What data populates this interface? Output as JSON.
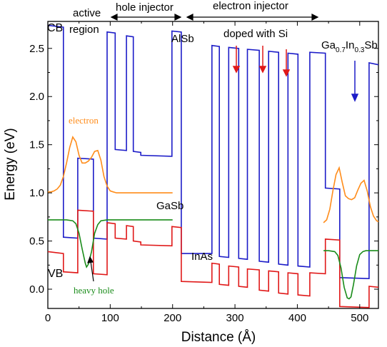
{
  "chart_data": {
    "type": "line",
    "title": "",
    "xlabel": "Distance (Å)",
    "ylabel": "Energy (eV)",
    "xlim": [
      0,
      530
    ],
    "ylim": [
      -0.2,
      2.78
    ],
    "grid": false,
    "colors": {
      "cb": "#1c1cc8",
      "vb": "#e01818",
      "electron": "#ff8c1a",
      "hole": "#1a8c1a",
      "arrow_red": "#e01818",
      "arrow_blue": "#1c1cc8"
    },
    "x_ticks": [
      0,
      100,
      200,
      300,
      400,
      500
    ],
    "y_ticks": [
      0.0,
      0.5,
      1.0,
      1.5,
      2.0,
      2.5
    ],
    "x_tick_labels": [
      "0",
      "100",
      "200",
      "300",
      "400",
      "500"
    ],
    "y_tick_labels": [
      "0.0",
      "0.5",
      "1.0",
      "1.5",
      "2.0",
      "2.5"
    ],
    "series": [
      {
        "name": "CB",
        "color": "#1c1cc8",
        "x": [
          0,
          25,
          25,
          48,
          48,
          73,
          73,
          95,
          95,
          108,
          108,
          126,
          126,
          137,
          137,
          149,
          149,
          199,
          199,
          214,
          214,
          263,
          263,
          275,
          275,
          290,
          290,
          306,
          306,
          320,
          320,
          339,
          339,
          354,
          354,
          370,
          370,
          385,
          385,
          401,
          401,
          420,
          420,
          445,
          445,
          468,
          468,
          515,
          515,
          530
        ],
        "y": [
          2.74,
          2.72,
          0.54,
          0.53,
          1.36,
          1.35,
          0.53,
          0.52,
          2.67,
          2.66,
          1.45,
          1.44,
          2.63,
          2.62,
          1.43,
          1.42,
          1.39,
          1.38,
          2.68,
          2.67,
          0.37,
          0.37,
          2.53,
          2.52,
          0.34,
          0.33,
          2.51,
          2.5,
          0.32,
          0.31,
          2.49,
          2.48,
          0.29,
          0.28,
          2.47,
          2.46,
          0.26,
          0.25,
          2.45,
          2.44,
          0.24,
          0.23,
          2.46,
          2.45,
          1.05,
          1.04,
          0.12,
          0.11,
          2.35,
          2.33
        ]
      },
      {
        "name": "VB",
        "color": "#e01818",
        "x": [
          0,
          25,
          25,
          48,
          48,
          73,
          73,
          95,
          95,
          108,
          108,
          126,
          126,
          137,
          137,
          149,
          149,
          199,
          199,
          214,
          214,
          263,
          263,
          275,
          275,
          290,
          290,
          306,
          306,
          320,
          320,
          339,
          339,
          354,
          354,
          370,
          370,
          385,
          385,
          401,
          401,
          420,
          420,
          445,
          445,
          468,
          468,
          515,
          515,
          530
        ],
        "y": [
          0.39,
          0.37,
          0.18,
          0.17,
          0.82,
          0.81,
          0.16,
          0.15,
          0.69,
          0.68,
          0.53,
          0.52,
          0.66,
          0.65,
          0.5,
          0.49,
          0.46,
          0.45,
          0.65,
          0.64,
          0.08,
          0.07,
          0.27,
          0.26,
          0.05,
          0.04,
          0.24,
          0.23,
          0.03,
          0.02,
          0.21,
          0.2,
          -0.01,
          -0.02,
          0.19,
          0.18,
          -0.04,
          -0.05,
          0.17,
          0.16,
          -0.06,
          -0.07,
          0.17,
          0.16,
          0.52,
          0.51,
          -0.18,
          -0.19,
          0.03,
          0.02
        ]
      },
      {
        "name": "electron",
        "color": "#ff8c1a",
        "x": [
          0,
          5,
          10,
          15,
          20,
          25,
          30,
          35,
          40,
          45,
          50,
          55,
          60,
          65,
          70,
          75,
          80,
          85,
          90,
          95,
          100,
          105,
          110,
          115,
          120,
          125,
          130,
          135,
          140,
          145,
          150,
          155,
          160,
          165,
          170,
          175,
          180,
          185,
          190,
          195,
          200
        ],
        "y": [
          1.01,
          1.01,
          1.02,
          1.04,
          1.08,
          1.17,
          1.31,
          1.47,
          1.58,
          1.53,
          1.39,
          1.31,
          1.31,
          1.33,
          1.37,
          1.43,
          1.44,
          1.34,
          1.17,
          1.07,
          1.02,
          1.01,
          1.0,
          1.0,
          1.0,
          1.0,
          1.0,
          1.0,
          1.0,
          1.0,
          1.0,
          1.0,
          1.0,
          1.0,
          1.0,
          1.0,
          1.0,
          1.0,
          1.0,
          1.0,
          1.0
        ]
      },
      {
        "name": "electron-right",
        "color": "#ff8c1a",
        "x": [
          442,
          447,
          452,
          457,
          462,
          467,
          472,
          477,
          482,
          487,
          492,
          497,
          502,
          507,
          512,
          517,
          522,
          527,
          530
        ],
        "y": [
          0.69,
          0.72,
          0.83,
          1.02,
          1.19,
          1.26,
          1.11,
          0.97,
          0.94,
          0.93,
          0.95,
          1.03,
          1.1,
          1.13,
          1.02,
          0.86,
          0.76,
          0.71,
          0.7
        ]
      },
      {
        "name": "heavy-hole",
        "color": "#1a8c1a",
        "x": [
          0,
          10,
          20,
          30,
          40,
          45,
          50,
          55,
          60,
          62,
          65,
          70,
          75,
          80,
          85,
          95,
          105,
          120,
          140,
          160,
          180,
          200
        ],
        "y": [
          0.72,
          0.72,
          0.72,
          0.72,
          0.71,
          0.68,
          0.58,
          0.42,
          0.27,
          0.23,
          0.26,
          0.39,
          0.58,
          0.67,
          0.71,
          0.72,
          0.72,
          0.72,
          0.72,
          0.72,
          0.72,
          0.72
        ]
      },
      {
        "name": "heavy-hole-right",
        "color": "#1a8c1a",
        "x": [
          442,
          450,
          460,
          465,
          470,
          475,
          480,
          483,
          486,
          490,
          495,
          500,
          505,
          510,
          515,
          520,
          530
        ],
        "y": [
          0.4,
          0.4,
          0.39,
          0.35,
          0.22,
          0.02,
          -0.09,
          -0.1,
          -0.08,
          0.05,
          0.24,
          0.36,
          0.39,
          0.4,
          0.4,
          0.4,
          0.4
        ]
      }
    ]
  },
  "annotations": {
    "cb": "CB",
    "vb": "VB",
    "active_line1": "active",
    "active_line2": "region",
    "hole_injector": "hole injector",
    "electron_injector": "electron injector",
    "alsb": "AlSb",
    "doped": "doped with Si",
    "ga_base": "Ga",
    "ga_sub1": "0.7",
    "in_base": "In",
    "in_sub": "0.3",
    "sb_base": "Sb",
    "electron": "electron",
    "gasb": "GaSb",
    "inas": "InAs",
    "heavy_hole": "heavy hole"
  }
}
